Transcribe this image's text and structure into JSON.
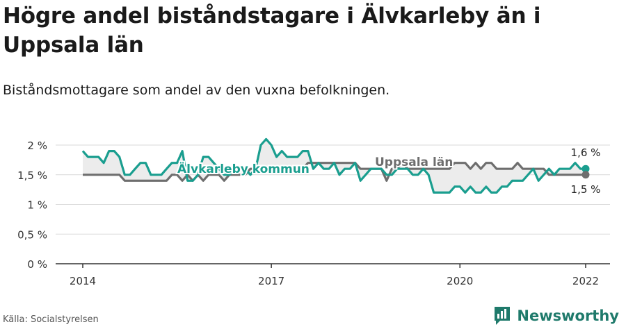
{
  "title": "Högre andel biståndstagare i Älvkarleby än i Uppsala län",
  "subtitle": "Biståndsmottagare som andel av den vuxna befolkningen.",
  "source": "Källa: Socialstyrelsen",
  "brand": {
    "name": "Newsworthy",
    "icon": "newsworthy-logo-icon"
  },
  "colors": {
    "series1": "#1a9e8f",
    "series2": "#6e6e6e",
    "fill": "#ececec",
    "grid": "#d9d9d9"
  },
  "chart_data": {
    "type": "line",
    "title": "Högre andel biståndstagare i Älvkarleby än i Uppsala län",
    "subtitle": "Biståndsmottagare som andel av den vuxna befolkningen.",
    "xlabel": "",
    "ylabel": "",
    "ylim": [
      0,
      2
    ],
    "xlim": [
      2014,
      2022.3
    ],
    "y_ticks": [
      0,
      0.5,
      1,
      1.5,
      2
    ],
    "y_tick_labels": [
      "0 %",
      "0,5 %",
      "1 %",
      "1,5 %",
      "2 %"
    ],
    "x_ticks": [
      2014,
      2017,
      2020,
      2022
    ],
    "x_tick_labels": [
      "2014",
      "2017",
      "2020",
      "2022"
    ],
    "grid": true,
    "series": [
      {
        "name": "Älvkarleby kommun",
        "label_text": "Älvkarleby kommun",
        "end_label": "1,6 %",
        "end_value": 1.6,
        "x": [
          2014.0,
          2014.083,
          2014.167,
          2014.25,
          2014.333,
          2014.417,
          2014.5,
          2014.583,
          2014.667,
          2014.75,
          2014.833,
          2014.917,
          2015.0,
          2015.083,
          2015.167,
          2015.25,
          2015.333,
          2015.417,
          2015.5,
          2015.583,
          2015.667,
          2015.75,
          2015.833,
          2015.917,
          2016.0,
          2016.083,
          2016.167,
          2016.25,
          2016.333,
          2016.417,
          2016.5,
          2016.583,
          2016.667,
          2016.75,
          2016.833,
          2016.917,
          2017.0,
          2017.083,
          2017.167,
          2017.25,
          2017.333,
          2017.417,
          2017.5,
          2017.583,
          2017.667,
          2017.75,
          2017.833,
          2017.917,
          2018.0,
          2018.083,
          2018.167,
          2018.25,
          2018.333,
          2018.417,
          2018.5,
          2018.583,
          2018.667,
          2018.75,
          2018.833,
          2018.917,
          2019.0,
          2019.083,
          2019.167,
          2019.25,
          2019.333,
          2019.417,
          2019.5,
          2019.583,
          2019.667,
          2019.75,
          2019.833,
          2019.917,
          2020.0,
          2020.083,
          2020.167,
          2020.25,
          2020.333,
          2020.417,
          2020.5,
          2020.583,
          2020.667,
          2020.75,
          2020.833,
          2020.917,
          2021.0,
          2021.083,
          2021.167,
          2021.25,
          2021.333,
          2021.417,
          2021.5,
          2021.583,
          2021.667,
          2021.75,
          2021.833,
          2021.917,
          2022.0
        ],
        "values": [
          1.9,
          1.8,
          1.8,
          1.8,
          1.7,
          1.9,
          1.9,
          1.8,
          1.5,
          1.5,
          1.6,
          1.7,
          1.7,
          1.5,
          1.5,
          1.5,
          1.6,
          1.7,
          1.7,
          1.9,
          1.4,
          1.4,
          1.5,
          1.8,
          1.8,
          1.7,
          1.6,
          1.5,
          1.5,
          1.6,
          1.6,
          1.6,
          1.5,
          1.6,
          2.0,
          2.1,
          2.0,
          1.8,
          1.9,
          1.8,
          1.8,
          1.8,
          1.9,
          1.9,
          1.6,
          1.7,
          1.6,
          1.6,
          1.7,
          1.5,
          1.6,
          1.6,
          1.7,
          1.4,
          1.5,
          1.6,
          1.6,
          1.6,
          1.5,
          1.5,
          1.6,
          1.6,
          1.6,
          1.5,
          1.5,
          1.6,
          1.5,
          1.2,
          1.2,
          1.2,
          1.2,
          1.3,
          1.3,
          1.2,
          1.3,
          1.2,
          1.2,
          1.3,
          1.2,
          1.2,
          1.3,
          1.3,
          1.4,
          1.4,
          1.4,
          1.5,
          1.6,
          1.4,
          1.5,
          1.6,
          1.5,
          1.6,
          1.6,
          1.6,
          1.7,
          1.6,
          1.6
        ]
      },
      {
        "name": "Uppsala län",
        "label_text": "Uppsala län",
        "end_label": "1,5 %",
        "end_value": 1.5,
        "x": [
          2014.0,
          2014.083,
          2014.167,
          2014.25,
          2014.333,
          2014.417,
          2014.5,
          2014.583,
          2014.667,
          2014.75,
          2014.833,
          2014.917,
          2015.0,
          2015.083,
          2015.167,
          2015.25,
          2015.333,
          2015.417,
          2015.5,
          2015.583,
          2015.667,
          2015.75,
          2015.833,
          2015.917,
          2016.0,
          2016.083,
          2016.167,
          2016.25,
          2016.333,
          2016.417,
          2016.5,
          2016.583,
          2016.667,
          2016.75,
          2016.833,
          2016.917,
          2017.0,
          2017.083,
          2017.167,
          2017.25,
          2017.333,
          2017.417,
          2017.5,
          2017.583,
          2017.667,
          2017.75,
          2017.833,
          2017.917,
          2018.0,
          2018.083,
          2018.167,
          2018.25,
          2018.333,
          2018.417,
          2018.5,
          2018.583,
          2018.667,
          2018.75,
          2018.833,
          2018.917,
          2019.0,
          2019.083,
          2019.167,
          2019.25,
          2019.333,
          2019.417,
          2019.5,
          2019.583,
          2019.667,
          2019.75,
          2019.833,
          2019.917,
          2020.0,
          2020.083,
          2020.167,
          2020.25,
          2020.333,
          2020.417,
          2020.5,
          2020.583,
          2020.667,
          2020.75,
          2020.833,
          2020.917,
          2021.0,
          2021.083,
          2021.167,
          2021.25,
          2021.333,
          2021.417,
          2021.5,
          2021.583,
          2021.667,
          2021.75,
          2021.833,
          2021.917,
          2022.0
        ],
        "values": [
          1.5,
          1.5,
          1.5,
          1.5,
          1.5,
          1.5,
          1.5,
          1.5,
          1.4,
          1.4,
          1.4,
          1.4,
          1.4,
          1.4,
          1.4,
          1.4,
          1.4,
          1.5,
          1.5,
          1.4,
          1.5,
          1.4,
          1.5,
          1.4,
          1.5,
          1.5,
          1.5,
          1.4,
          1.5,
          1.5,
          1.5,
          1.5,
          1.6,
          1.6,
          1.6,
          1.6,
          1.6,
          1.6,
          1.6,
          1.6,
          1.6,
          1.6,
          1.6,
          1.7,
          1.7,
          1.7,
          1.7,
          1.7,
          1.7,
          1.7,
          1.7,
          1.7,
          1.7,
          1.6,
          1.6,
          1.6,
          1.6,
          1.6,
          1.4,
          1.6,
          1.6,
          1.7,
          1.6,
          1.6,
          1.6,
          1.6,
          1.6,
          1.6,
          1.6,
          1.6,
          1.6,
          1.7,
          1.7,
          1.7,
          1.6,
          1.7,
          1.6,
          1.7,
          1.7,
          1.6,
          1.6,
          1.6,
          1.6,
          1.7,
          1.6,
          1.6,
          1.6,
          1.6,
          1.6,
          1.5,
          1.5,
          1.5,
          1.5,
          1.5,
          1.5,
          1.5,
          1.5
        ]
      }
    ]
  }
}
